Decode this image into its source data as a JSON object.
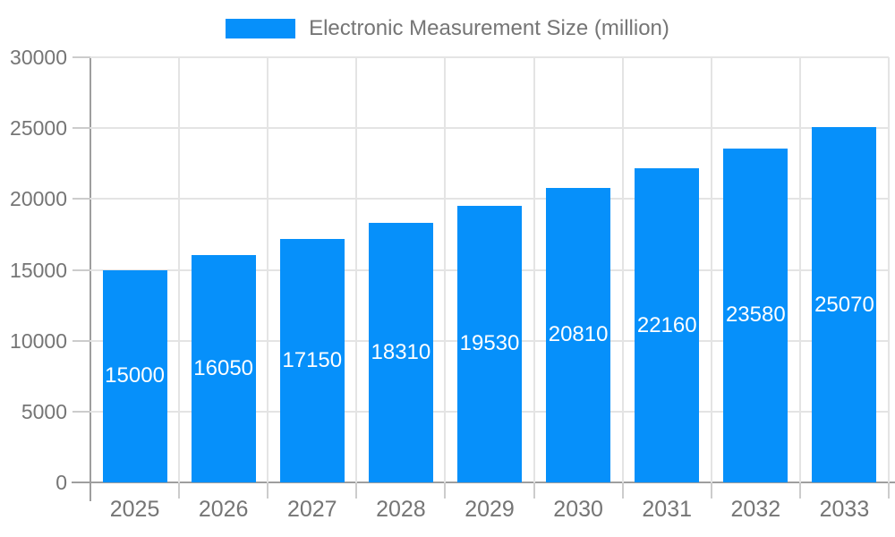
{
  "chart_data": {
    "type": "bar",
    "title": "Electronic Measurement Size (million)",
    "categories": [
      "2025",
      "2026",
      "2027",
      "2028",
      "2029",
      "2030",
      "2031",
      "2032",
      "2033"
    ],
    "values": [
      15000,
      16050,
      17150,
      18310,
      19530,
      20810,
      22160,
      23580,
      25070
    ],
    "xlabel": "",
    "ylabel": "",
    "ylim": [
      0,
      30000
    ],
    "yticks": [
      0,
      5000,
      10000,
      15000,
      20000,
      25000,
      30000
    ],
    "grid": true,
    "legend_position": "top-center",
    "legend_entries": [
      "Electronic Measurement Size (million)"
    ],
    "colors": {
      "bar": "#0690fa",
      "grid": "#e4e4e4",
      "axis": "#9e9e9e",
      "tick": "#cccccc",
      "label_text": "#757575",
      "bar_label_text": "#ffffff",
      "background": "#ffffff"
    }
  }
}
